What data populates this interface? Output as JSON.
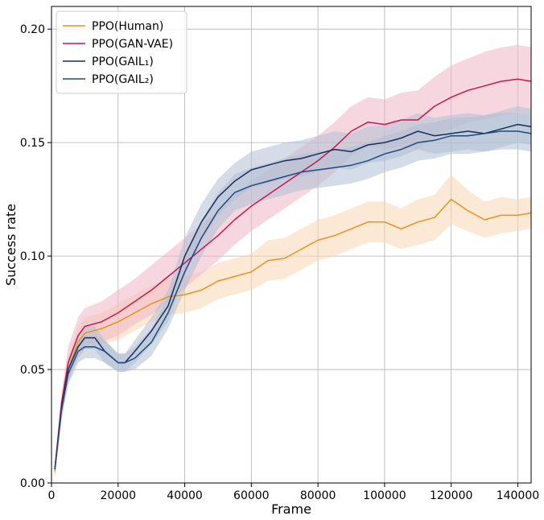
{
  "chart_data": {
    "type": "line",
    "title": "",
    "xlabel": "Frame",
    "ylabel": "Success rate",
    "xlim": [
      0,
      144000
    ],
    "ylim": [
      0,
      0.21
    ],
    "xticks": [
      0,
      20000,
      40000,
      60000,
      80000,
      100000,
      120000,
      140000
    ],
    "xtick_labels": [
      "0",
      "20000",
      "40000",
      "60000",
      "80000",
      "100000",
      "120000",
      "140000"
    ],
    "yticks": [
      0,
      0.05,
      0.1,
      0.15,
      0.2
    ],
    "ytick_labels": [
      "0.00",
      "0.05",
      "0.10",
      "0.15",
      "0.20"
    ],
    "grid": true,
    "legend_position": "top-left",
    "series": [
      {
        "name": "PPO(Human)",
        "color": "#e8921c",
        "band_color": "#f9d7b3",
        "x": [
          1000,
          3000,
          5000,
          8000,
          10000,
          15000,
          20000,
          25000,
          30000,
          35000,
          40000,
          45000,
          50000,
          55000,
          60000,
          65000,
          70000,
          75000,
          80000,
          85000,
          90000,
          95000,
          100000,
          105000,
          110000,
          115000,
          120000,
          125000,
          130000,
          135000,
          140000,
          144000
        ],
        "y": [
          0.005,
          0.032,
          0.05,
          0.062,
          0.066,
          0.068,
          0.071,
          0.075,
          0.079,
          0.082,
          0.083,
          0.085,
          0.089,
          0.091,
          0.093,
          0.098,
          0.099,
          0.103,
          0.107,
          0.109,
          0.112,
          0.115,
          0.115,
          0.112,
          0.115,
          0.117,
          0.125,
          0.12,
          0.116,
          0.118,
          0.118,
          0.119
        ],
        "band": [
          0.003,
          0.005,
          0.006,
          0.007,
          0.007,
          0.007,
          0.008,
          0.008,
          0.008,
          0.008,
          0.008,
          0.008,
          0.008,
          0.008,
          0.008,
          0.009,
          0.009,
          0.009,
          0.009,
          0.009,
          0.009,
          0.009,
          0.009,
          0.009,
          0.01,
          0.01,
          0.011,
          0.009,
          0.008,
          0.008,
          0.007,
          0.007
        ]
      },
      {
        "name": "PPO(GAN-VAE)",
        "color": "#c4184f",
        "band_color": "#eeb6c6",
        "x": [
          1000,
          3000,
          5000,
          8000,
          10000,
          15000,
          20000,
          25000,
          30000,
          35000,
          40000,
          45000,
          50000,
          55000,
          60000,
          65000,
          70000,
          75000,
          80000,
          85000,
          90000,
          95000,
          100000,
          105000,
          110000,
          115000,
          120000,
          125000,
          130000,
          135000,
          140000,
          144000
        ],
        "y": [
          0.006,
          0.035,
          0.053,
          0.065,
          0.069,
          0.071,
          0.075,
          0.08,
          0.085,
          0.091,
          0.097,
          0.103,
          0.109,
          0.116,
          0.122,
          0.127,
          0.132,
          0.137,
          0.142,
          0.148,
          0.155,
          0.159,
          0.158,
          0.16,
          0.16,
          0.166,
          0.17,
          0.173,
          0.175,
          0.177,
          0.178,
          0.177
        ],
        "band": [
          0.003,
          0.005,
          0.007,
          0.008,
          0.008,
          0.009,
          0.01,
          0.01,
          0.011,
          0.011,
          0.011,
          0.011,
          0.011,
          0.011,
          0.011,
          0.011,
          0.011,
          0.011,
          0.011,
          0.011,
          0.011,
          0.011,
          0.011,
          0.012,
          0.013,
          0.013,
          0.014,
          0.014,
          0.015,
          0.015,
          0.015,
          0.015
        ]
      },
      {
        "name": "PPO(GAIL₁)",
        "color": "#1b2c5c",
        "band_color": "#b3bfd3",
        "x": [
          1000,
          3000,
          5000,
          8000,
          10000,
          13000,
          16000,
          20000,
          22000,
          25000,
          30000,
          35000,
          40000,
          45000,
          50000,
          55000,
          60000,
          65000,
          70000,
          75000,
          80000,
          85000,
          90000,
          95000,
          100000,
          105000,
          110000,
          115000,
          120000,
          125000,
          130000,
          135000,
          140000,
          144000
        ],
        "y": [
          0.006,
          0.033,
          0.05,
          0.06,
          0.064,
          0.064,
          0.058,
          0.053,
          0.053,
          0.058,
          0.067,
          0.078,
          0.1,
          0.115,
          0.126,
          0.133,
          0.138,
          0.14,
          0.142,
          0.143,
          0.145,
          0.147,
          0.146,
          0.149,
          0.15,
          0.152,
          0.155,
          0.153,
          0.154,
          0.155,
          0.154,
          0.156,
          0.158,
          0.157
        ],
        "band": [
          0.003,
          0.004,
          0.005,
          0.005,
          0.005,
          0.005,
          0.005,
          0.004,
          0.004,
          0.005,
          0.006,
          0.007,
          0.008,
          0.008,
          0.008,
          0.008,
          0.008,
          0.008,
          0.008,
          0.008,
          0.008,
          0.008,
          0.008,
          0.008,
          0.008,
          0.008,
          0.008,
          0.008,
          0.008,
          0.008,
          0.008,
          0.008,
          0.008,
          0.008
        ]
      },
      {
        "name": "PPO(GAIL₂)",
        "color": "#21497e",
        "band_color": "#aebfd4",
        "x": [
          1000,
          3000,
          5000,
          8000,
          10000,
          13000,
          16000,
          20000,
          22000,
          25000,
          30000,
          35000,
          40000,
          45000,
          50000,
          55000,
          60000,
          65000,
          70000,
          75000,
          80000,
          85000,
          90000,
          95000,
          100000,
          105000,
          110000,
          115000,
          120000,
          125000,
          130000,
          135000,
          140000,
          144000
        ],
        "y": [
          0.006,
          0.032,
          0.048,
          0.058,
          0.06,
          0.06,
          0.058,
          0.053,
          0.053,
          0.055,
          0.062,
          0.075,
          0.093,
          0.108,
          0.12,
          0.128,
          0.131,
          0.133,
          0.135,
          0.137,
          0.138,
          0.139,
          0.14,
          0.142,
          0.145,
          0.147,
          0.15,
          0.151,
          0.153,
          0.153,
          0.154,
          0.155,
          0.155,
          0.154
        ],
        "band": [
          0.003,
          0.004,
          0.005,
          0.005,
          0.005,
          0.005,
          0.005,
          0.004,
          0.004,
          0.005,
          0.006,
          0.007,
          0.008,
          0.008,
          0.008,
          0.008,
          0.008,
          0.008,
          0.008,
          0.008,
          0.008,
          0.008,
          0.008,
          0.008,
          0.008,
          0.008,
          0.008,
          0.008,
          0.008,
          0.008,
          0.008,
          0.008,
          0.008,
          0.008
        ]
      }
    ]
  }
}
